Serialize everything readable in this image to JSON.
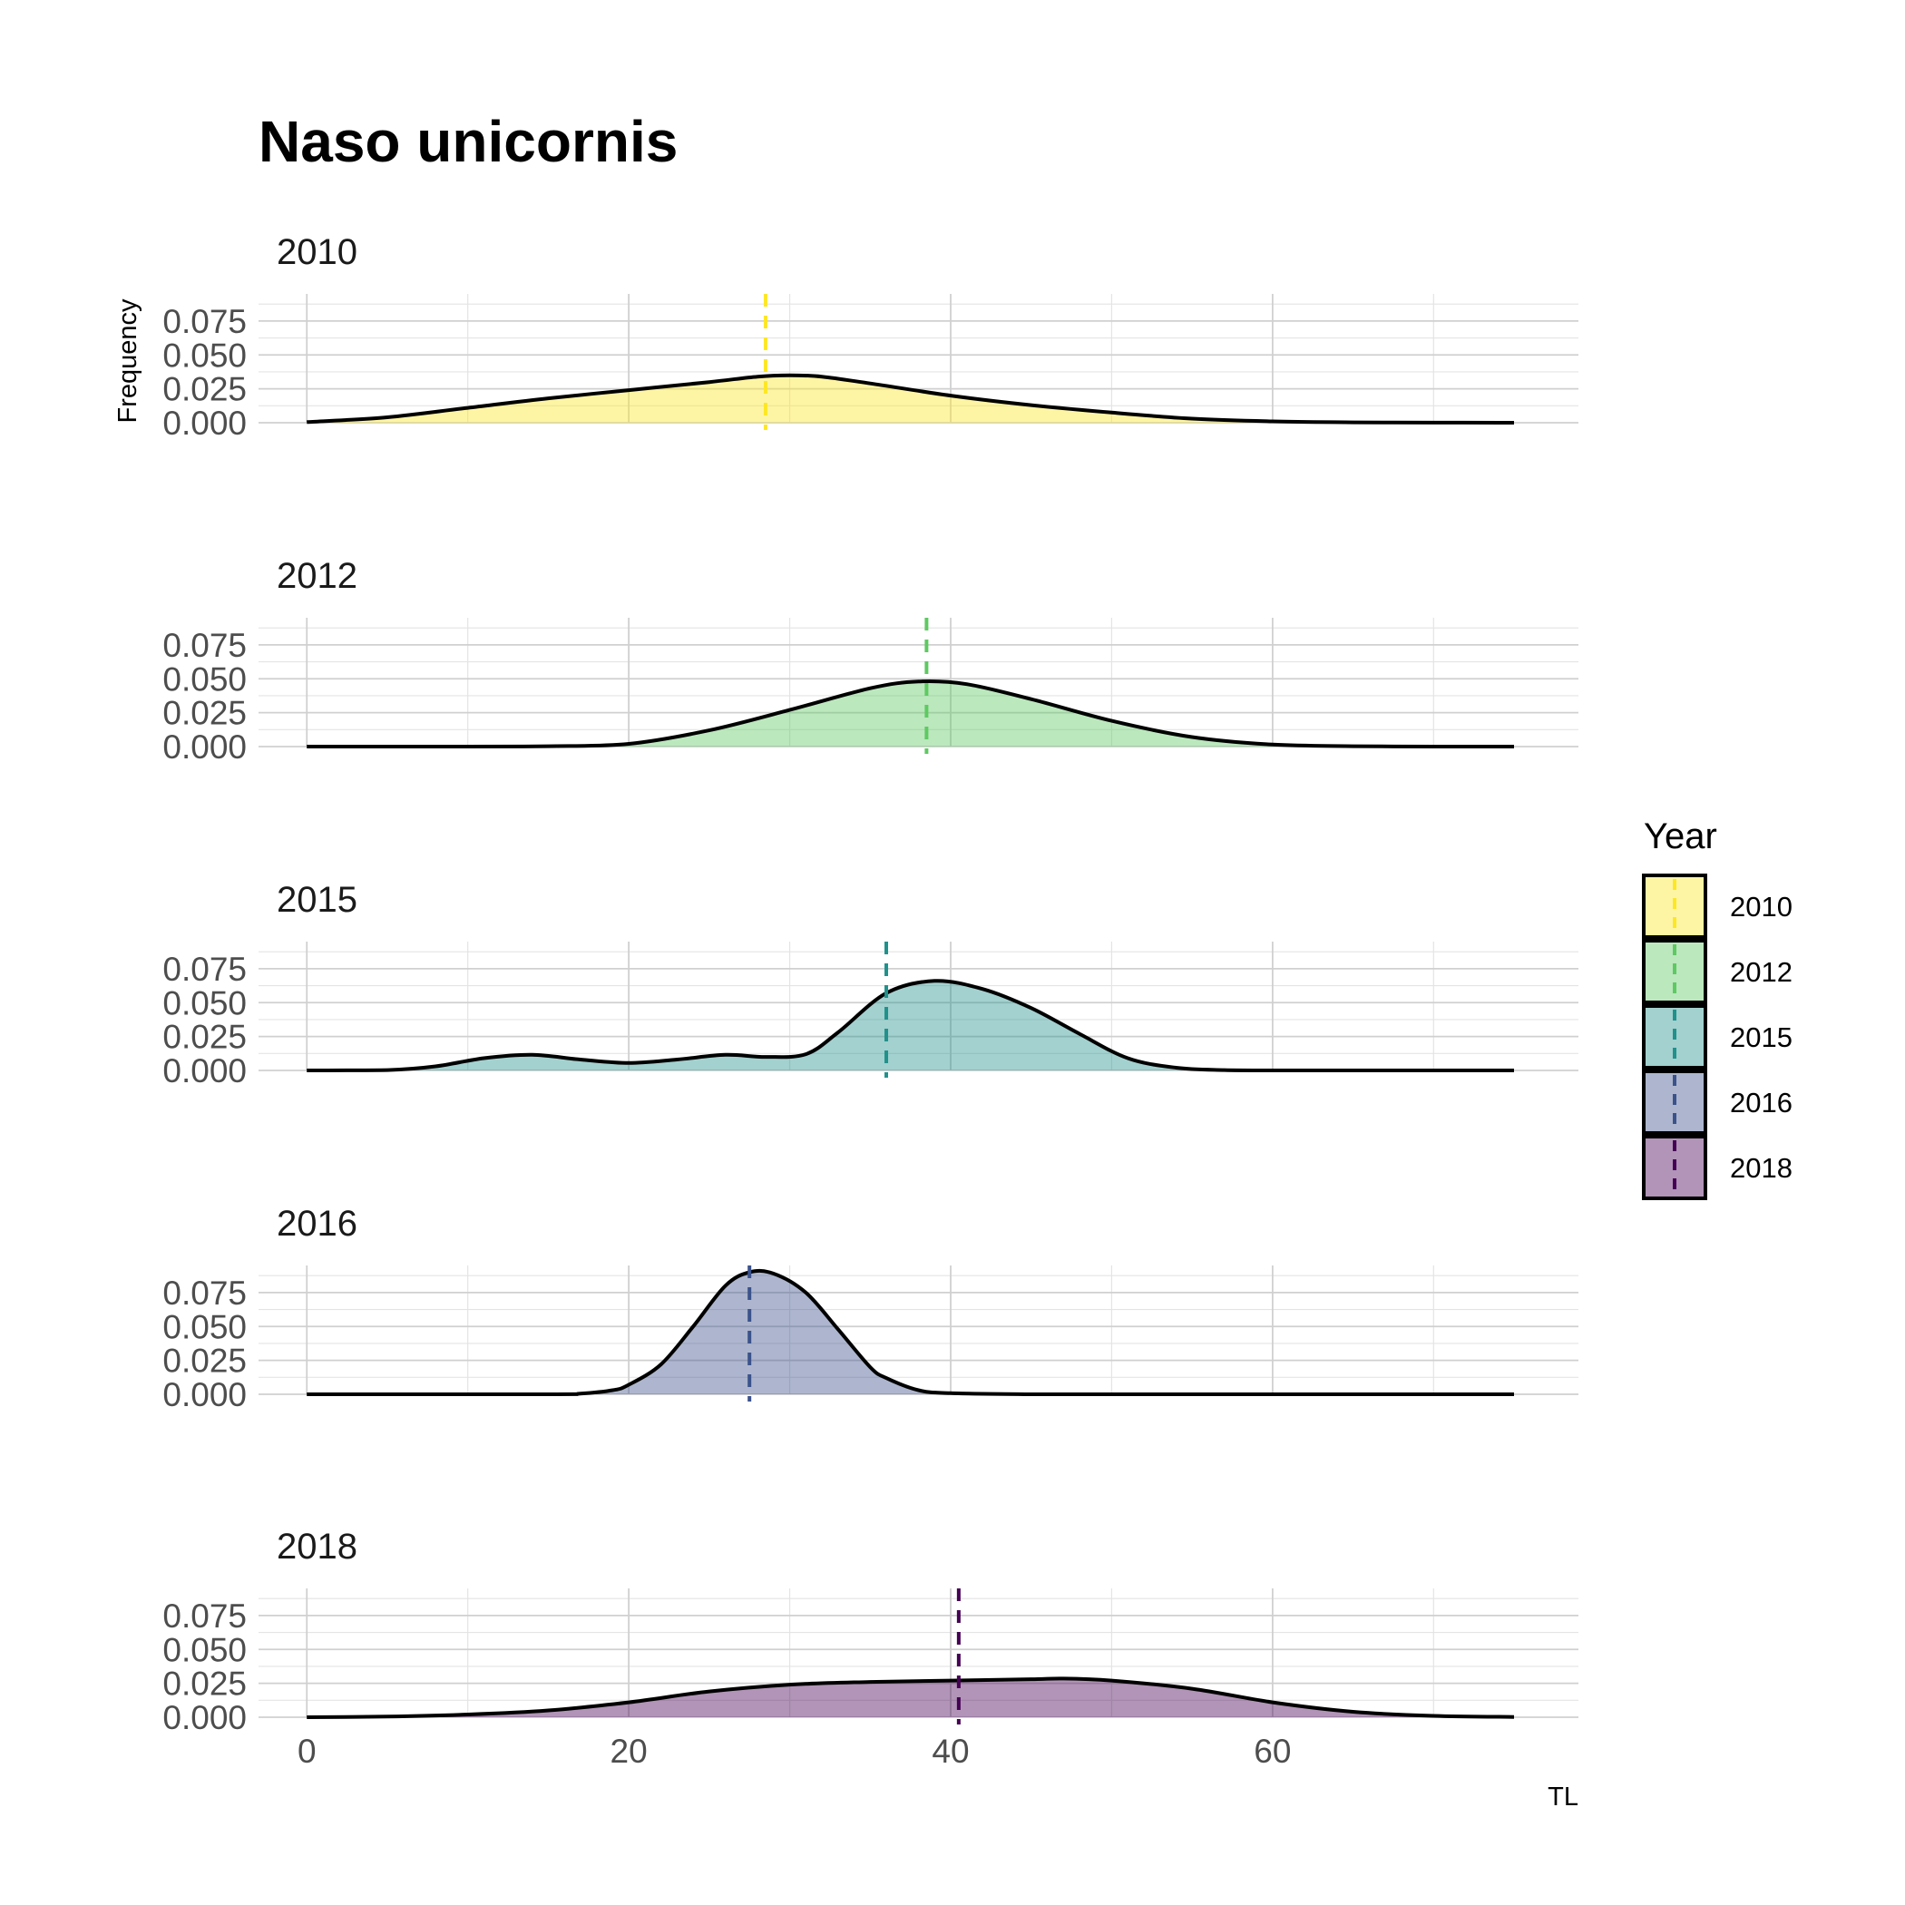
{
  "chart_data": {
    "type": "area",
    "title": "Naso unicornis",
    "xlabel": "TL",
    "ylabel": "Frequency",
    "xlim": [
      -3,
      79
    ],
    "ylim": [
      0,
      0.095
    ],
    "x_ticks": [
      0,
      20,
      40,
      60
    ],
    "y_ticks": [
      0.0,
      0.025,
      0.05,
      0.075
    ],
    "y_tick_labels": [
      "0.000",
      "0.025",
      "0.050",
      "0.075"
    ],
    "grid": true,
    "legend": {
      "title": "Year",
      "position": "right"
    },
    "series": [
      {
        "name": "2010",
        "color": "#FDE725",
        "mean_line": 28.5,
        "x": [
          0,
          5,
          10,
          15,
          20,
          25,
          28,
          30,
          32,
          35,
          40,
          45,
          50,
          55,
          60,
          65,
          70,
          75
        ],
        "y": [
          0.0005,
          0.004,
          0.011,
          0.018,
          0.024,
          0.03,
          0.034,
          0.035,
          0.034,
          0.029,
          0.02,
          0.013,
          0.0075,
          0.003,
          0.001,
          0.0003,
          0.0001,
          0.0
        ]
      },
      {
        "name": "2012",
        "color": "#5EC962",
        "mean_line": 38.5,
        "x": [
          0,
          10,
          15,
          20,
          25,
          30,
          35,
          38,
          41,
          45,
          50,
          55,
          60,
          65,
          70,
          75
        ],
        "y": [
          0.0,
          0.0,
          0.0003,
          0.002,
          0.012,
          0.027,
          0.043,
          0.048,
          0.046,
          0.035,
          0.019,
          0.007,
          0.0015,
          0.0003,
          0.0,
          0.0
        ]
      },
      {
        "name": "2015",
        "color": "#21918C",
        "mean_line": 36.0,
        "x": [
          0,
          5,
          8,
          11,
          14,
          17,
          20,
          23,
          26,
          28.5,
          31,
          33,
          36,
          39,
          42,
          45,
          48,
          51,
          54,
          57,
          60,
          65,
          70,
          75
        ],
        "y": [
          0.0,
          0.0003,
          0.003,
          0.009,
          0.0115,
          0.008,
          0.0055,
          0.008,
          0.0115,
          0.01,
          0.012,
          0.028,
          0.057,
          0.066,
          0.06,
          0.046,
          0.027,
          0.009,
          0.002,
          0.0003,
          0.0,
          0.0,
          0.0,
          0.0
        ]
      },
      {
        "name": "2016",
        "color": "#3B528B",
        "mean_line": 27.5,
        "x": [
          0,
          15,
          17,
          19,
          20,
          22,
          24,
          26,
          27.5,
          29,
          31,
          33,
          35,
          36,
          38,
          40,
          45,
          50,
          60,
          75
        ],
        "y": [
          0.0,
          0.0,
          0.0005,
          0.003,
          0.007,
          0.022,
          0.05,
          0.08,
          0.09,
          0.089,
          0.075,
          0.048,
          0.02,
          0.012,
          0.003,
          0.0008,
          0.0,
          0.0,
          0.0,
          0.0
        ]
      },
      {
        "name": "2018",
        "color": "#440154",
        "mean_line": 40.5,
        "x": [
          0,
          5,
          10,
          15,
          20,
          25,
          30,
          35,
          40,
          45,
          47,
          50,
          55,
          60,
          65,
          70,
          75
        ],
        "y": [
          0.0,
          0.0005,
          0.002,
          0.005,
          0.011,
          0.019,
          0.024,
          0.026,
          0.027,
          0.028,
          0.0285,
          0.027,
          0.021,
          0.011,
          0.004,
          0.001,
          0.0002
        ]
      }
    ]
  }
}
